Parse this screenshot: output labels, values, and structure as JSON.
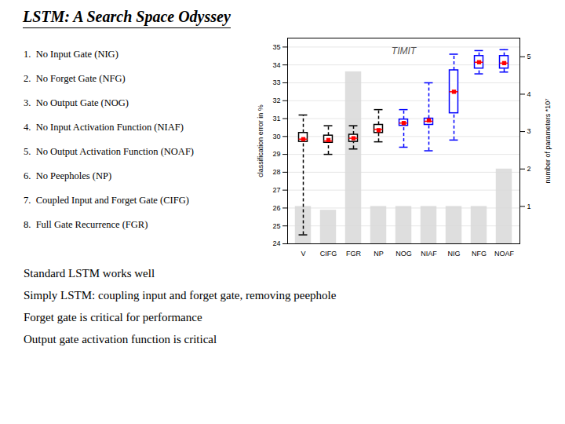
{
  "chart_data": {
    "type": "box",
    "title": "LSTM: A Search Space Odyssey",
    "categories": [
      "V",
      "CIFG",
      "FGR",
      "NP",
      "NOG",
      "NIAF",
      "NIG",
      "NFG",
      "NOAF"
    ],
    "ylabel": "classification error in %",
    "y2label": "number of parameters *10⁷",
    "ylim": [
      24,
      35.5
    ],
    "yticks": [
      24,
      25,
      26,
      27,
      28,
      29,
      30,
      31,
      32,
      33,
      34,
      35
    ],
    "y2lim": [
      0,
      5.5
    ],
    "y2ticks": [
      1,
      2,
      3,
      4,
      5
    ],
    "grid": true,
    "annotation": "TIMIT",
    "series": [
      {
        "type": "bar",
        "axis": "y2",
        "color": "#d8d8d8",
        "values": [
          1.0,
          0.9,
          4.6,
          1.0,
          1.0,
          1.0,
          1.0,
          1.0,
          2.0
        ]
      },
      {
        "type": "box",
        "line_style": "dashed",
        "colors": [
          "black",
          "black",
          "black",
          "black",
          "blue",
          "blue",
          "blue",
          "blue",
          "blue"
        ],
        "values": [
          {
            "whislo": 24.5,
            "q1": 29.7,
            "q3": 30.2,
            "whishi": 31.2
          },
          {
            "whislo": 29.0,
            "q1": 29.65,
            "q3": 30.05,
            "whishi": 30.6
          },
          {
            "whislo": 29.3,
            "q1": 29.7,
            "q3": 30.1,
            "whishi": 30.6
          },
          {
            "whislo": 29.7,
            "q1": 30.2,
            "q3": 30.65,
            "whishi": 31.5
          },
          {
            "whislo": 29.4,
            "q1": 30.6,
            "q3": 30.95,
            "whishi": 31.5
          },
          {
            "whislo": 29.2,
            "q1": 30.65,
            "q3": 31.0,
            "whishi": 33.0
          },
          {
            "whislo": 29.8,
            "q1": 31.3,
            "q3": 33.7,
            "whishi": 34.6
          },
          {
            "whislo": 33.5,
            "q1": 33.8,
            "q3": 34.5,
            "whishi": 34.8
          },
          {
            "whislo": 33.6,
            "q1": 33.8,
            "q3": 34.5,
            "whishi": 34.85
          }
        ]
      },
      {
        "type": "tick",
        "color": "red",
        "values": [
          29.85,
          29.75,
          29.9,
          30.4,
          30.75,
          30.85,
          32.5,
          34.15,
          34.1
        ]
      },
      {
        "type": "scatter",
        "color": "red",
        "marker": "square",
        "values": [
          29.85,
          29.8,
          29.9,
          30.35,
          30.75,
          30.9,
          32.5,
          34.15,
          34.1
        ]
      }
    ],
    "bullet_points": [
      "1.  No Input Gate (NIG)",
      "2.  No Forget Gate (NFG)",
      "3.  No Output Gate (NOG)",
      "4.  No Input Activation Function (NIAF)",
      "5.  No Output Activation Function (NOAF)",
      "6.  No Peepholes (NP)",
      "7.  Coupled Input and Forget Gate (CIFG)",
      "8.  Full Gate Recurrence (FGR)"
    ],
    "summary_lines": [
      "Standard LSTM works well",
      "Simply LSTM: coupling input and forget gate, removing peephole",
      "Forget gate is critical for performance",
      "Output gate activation function is critical"
    ]
  }
}
